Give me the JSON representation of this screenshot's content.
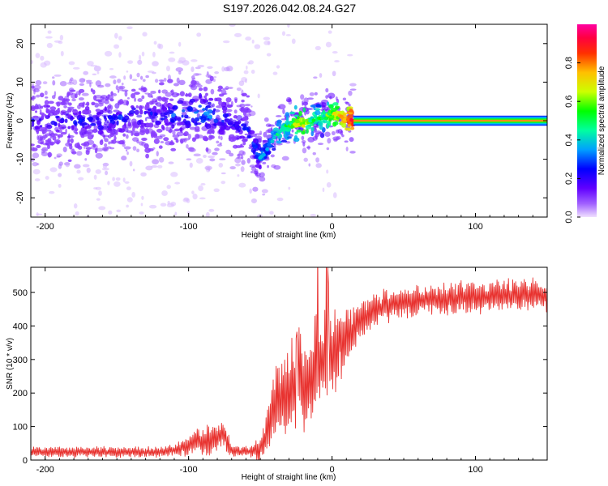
{
  "title": "S197.2026.042.08.24.G27",
  "chart_data": [
    {
      "type": "heatmap",
      "name": "spectrogram",
      "title": "S197.2026.042.08.24.G27",
      "xlabel": "Height of straight line (km)",
      "ylabel": "Frequency (Hz)",
      "xlim": [
        -210,
        150
      ],
      "ylim": [
        -25,
        25
      ],
      "xticks": [
        -200,
        -100,
        0,
        100
      ],
      "yticks": [
        -20,
        -10,
        0,
        10,
        20
      ],
      "colorbar": {
        "label": "Normalized spectral amplitude",
        "range": [
          0,
          1
        ],
        "ticks": [
          "0.0",
          "0.2",
          "0.4",
          "0.6",
          "0.8"
        ],
        "colors": [
          "#e0c8ff",
          "#7a00ff",
          "#0000ff",
          "#00c8ff",
          "#00ff00",
          "#ffff00",
          "#ff8000",
          "#ff0000",
          "#ff0080"
        ]
      },
      "ridge": {
        "x": [
          -200,
          -180,
          -160,
          -140,
          -120,
          -100,
          -90,
          -80,
          -70,
          -60,
          -55,
          -50,
          -45,
          -40,
          -35,
          -30,
          -25,
          -20,
          -15,
          -10,
          -5,
          0,
          5,
          10,
          15,
          150
        ],
        "frequency": [
          0,
          0,
          0,
          1,
          1,
          2,
          2,
          1,
          0,
          -2,
          -6,
          -10,
          -7,
          -4,
          -2,
          -1,
          -1,
          -1,
          0,
          1,
          1,
          2,
          1,
          0,
          0,
          0
        ],
        "peak_amplitude": [
          0.2,
          0.22,
          0.25,
          0.25,
          0.25,
          0.3,
          0.35,
          0.3,
          0.25,
          0.25,
          0.28,
          0.3,
          0.35,
          0.4,
          0.45,
          0.5,
          0.6,
          0.7,
          0.5,
          0.45,
          0.5,
          0.6,
          0.7,
          0.8,
          0.95,
          0.95
        ]
      }
    },
    {
      "type": "line",
      "name": "snr",
      "xlabel": "Height of straight line (km)",
      "ylabel": "SNR (10 * v/v)",
      "xlim": [
        -210,
        150
      ],
      "ylim": [
        0,
        575
      ],
      "xticks": [
        -200,
        -100,
        0,
        100
      ],
      "yticks": [
        0,
        100,
        200,
        300,
        400,
        500
      ],
      "color": "#e8322f",
      "x": [
        -210,
        -200,
        -180,
        -160,
        -140,
        -120,
        -110,
        -100,
        -95,
        -90,
        -85,
        -80,
        -75,
        -70,
        -65,
        -60,
        -55,
        -50,
        -45,
        -40,
        -35,
        -30,
        -25,
        -20,
        -15,
        -10,
        -5,
        0,
        5,
        10,
        15,
        20,
        30,
        40,
        50,
        60,
        80,
        100,
        120,
        140,
        150
      ],
      "y": [
        25,
        25,
        23,
        25,
        24,
        25,
        30,
        40,
        60,
        55,
        60,
        70,
        75,
        30,
        25,
        25,
        25,
        35,
        80,
        180,
        200,
        210,
        230,
        250,
        260,
        290,
        300,
        320,
        350,
        370,
        390,
        420,
        450,
        460,
        470,
        475,
        480,
        485,
        490,
        495,
        490
      ],
      "noise_envelope": [
        15,
        15,
        15,
        15,
        15,
        15,
        15,
        30,
        40,
        40,
        40,
        40,
        40,
        20,
        15,
        15,
        15,
        40,
        60,
        120,
        140,
        150,
        150,
        150,
        150,
        150,
        140,
        130,
        110,
        90,
        70,
        60,
        50,
        45,
        45,
        45,
        45,
        45,
        45,
        45,
        45
      ]
    }
  ]
}
